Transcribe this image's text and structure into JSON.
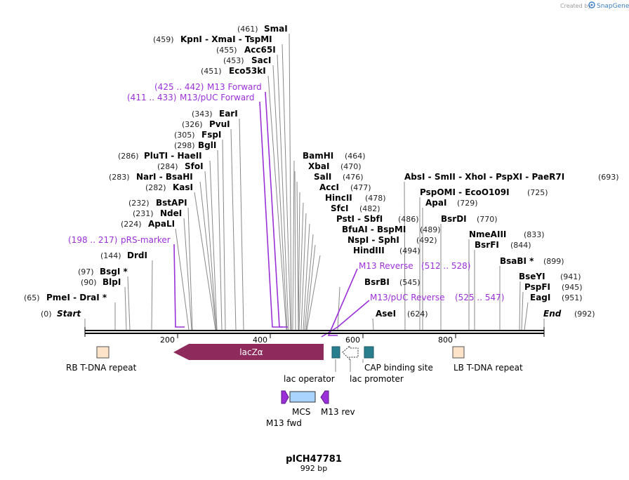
{
  "credit": {
    "prefix": "Created by",
    "brand": "SnapGene"
  },
  "plasmid": {
    "name": "pICH47781",
    "length_label": "992 bp"
  },
  "axis": {
    "length": 992,
    "ticks": [
      "200",
      "400",
      "600",
      "800"
    ]
  },
  "colors": {
    "primer": "#9b30d9",
    "lacZ": "#8e2b5c",
    "operator": "#2a7f8f",
    "repeat": "#fde3c8",
    "mcs": "#a8d4ff",
    "m13": "#9b30d9"
  },
  "labels": [
    {
      "pos": "(0)",
      "name": "Start",
      "italic": true
    },
    {
      "pos": "(992)",
      "name": "End",
      "italic": true
    },
    {
      "pos": "(65)",
      "name": "PmeI  -  DraI *"
    },
    {
      "pos": "(90)",
      "name": "BlpI"
    },
    {
      "pos": "(97)",
      "name": "BsgI *"
    },
    {
      "pos": "(144)",
      "name": "DrdI"
    },
    {
      "pos": "(198 .. 217)",
      "name": "pRS-marker",
      "primer": true
    },
    {
      "pos": "(224)",
      "name": "ApaLI"
    },
    {
      "pos": "(231)",
      "name": "NdeI"
    },
    {
      "pos": "(232)",
      "name": "BstAPI"
    },
    {
      "pos": "(282)",
      "name": "KasI"
    },
    {
      "pos": "(283)",
      "name": "NarI  -  BsaHI"
    },
    {
      "pos": "(284)",
      "name": "SfoI"
    },
    {
      "pos": "(286)",
      "name": "PluTI  -  HaeII"
    },
    {
      "pos": "(298)",
      "name": "BglI"
    },
    {
      "pos": "(305)",
      "name": "FspI"
    },
    {
      "pos": "(326)",
      "name": "PvuI"
    },
    {
      "pos": "(343)",
      "name": "EarI"
    },
    {
      "pos": "(411 .. 433)",
      "name": "M13/pUC Forward",
      "primer": true
    },
    {
      "pos": "(425 .. 442)",
      "name": "M13 Forward",
      "primer": true
    },
    {
      "pos": "(451)",
      "name": "Eco53kI"
    },
    {
      "pos": "(453)",
      "name": "SacI"
    },
    {
      "pos": "(455)",
      "name": "Acc65I"
    },
    {
      "pos": "(459)",
      "name": "KpnI  -  XmaI  -  TspMI"
    },
    {
      "pos": "(461)",
      "name": "SmaI"
    },
    {
      "pos": "(464)",
      "name": "BamHI"
    },
    {
      "pos": "(470)",
      "name": "XbaI"
    },
    {
      "pos": "(476)",
      "name": "SalI"
    },
    {
      "pos": "(477)",
      "name": "AccI"
    },
    {
      "pos": "(478)",
      "name": "HincII"
    },
    {
      "pos": "(482)",
      "name": "SfcI"
    },
    {
      "pos": "(486)",
      "name": "PstI  -  SbfI"
    },
    {
      "pos": "(489)",
      "name": "BfuAI  -  BspMI"
    },
    {
      "pos": "(492)",
      "name": "NspI  -  SphI"
    },
    {
      "pos": "(494)",
      "name": "HindIII"
    },
    {
      "pos": "(512 .. 528)",
      "name": "M13 Reverse",
      "primer": true
    },
    {
      "pos": "(545)",
      "name": "BsrBI"
    },
    {
      "pos": "(525 .. 547)",
      "name": "M13/pUC Reverse",
      "primer": true
    },
    {
      "pos": "(624)",
      "name": "AseI"
    },
    {
      "pos": "(693)",
      "name": "AbsI  -  SmII  -  XhoI  -  PspXI  -  PaeR7I"
    },
    {
      "pos": "(725)",
      "name": "PspOMI  -  EcoO109I"
    },
    {
      "pos": "(729)",
      "name": "ApaI"
    },
    {
      "pos": "(770)",
      "name": "BsrDI"
    },
    {
      "pos": "(833)",
      "name": "NmeAIII"
    },
    {
      "pos": "(844)",
      "name": "BsrFI"
    },
    {
      "pos": "(899)",
      "name": "BsaBI *"
    },
    {
      "pos": "(941)",
      "name": "BseYI"
    },
    {
      "pos": "(945)",
      "name": "PspFI"
    },
    {
      "pos": "(951)",
      "name": "EagI"
    }
  ],
  "features": {
    "lacZ": "lacZα",
    "rb_repeat": "RB T-DNA repeat",
    "lb_repeat": "LB T-DNA repeat",
    "lac_operator": "lac operator",
    "lac_promoter": "lac promoter",
    "cap_site": "CAP binding site",
    "mcs": "MCS",
    "m13_fwd": "M13 fwd",
    "m13_rev": "M13 rev"
  }
}
